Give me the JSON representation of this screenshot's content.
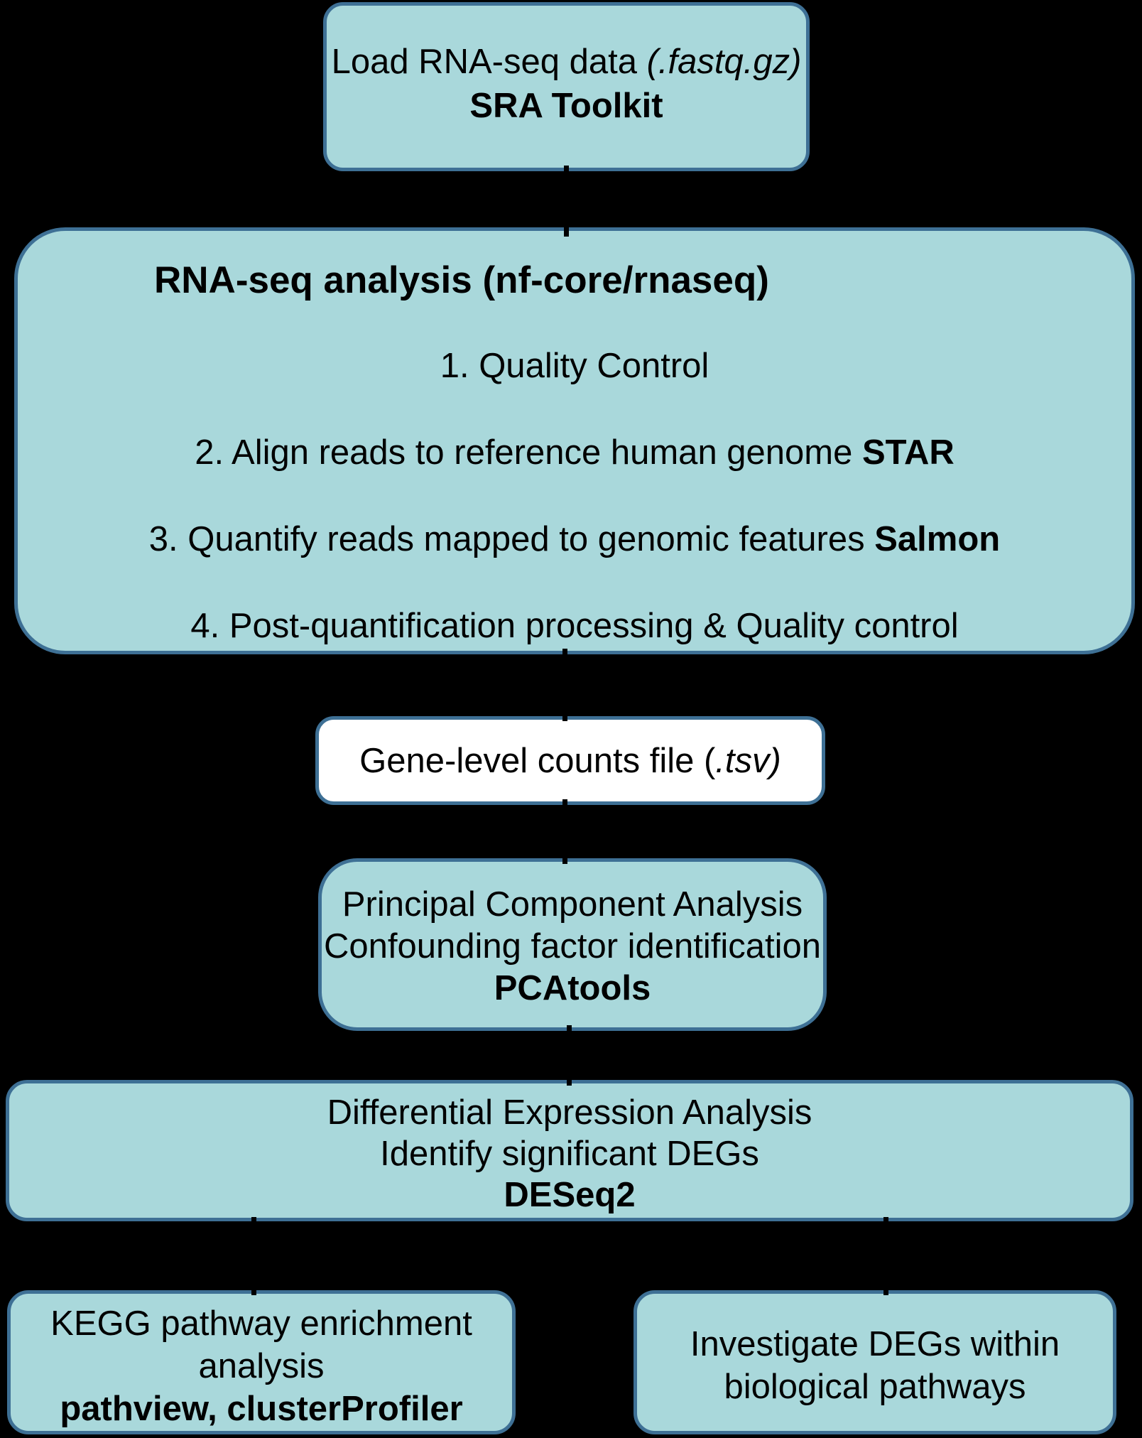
{
  "colors": {
    "background": "#000000",
    "node_fill": "#a9d8db",
    "node_border": "#3e7095",
    "file_node_fill": "#ffffff",
    "text": "#000000"
  },
  "nodes": {
    "load_data": {
      "text": "Load RNA-seq data ",
      "file_format": "(.fastq.gz)",
      "tool": "SRA Toolkit"
    },
    "pipeline": {
      "title": "RNA-seq analysis (nf-core/rnaseq)",
      "steps": [
        {
          "text": "1. Quality Control",
          "tool": ""
        },
        {
          "text": "2. Align reads to reference human genome ",
          "tool": "STAR"
        },
        {
          "text": "3. Quantify reads mapped to genomic features ",
          "tool": "Salmon"
        },
        {
          "text": "4. Post-quantification processing & Quality control",
          "tool": ""
        }
      ]
    },
    "counts_file": {
      "text": "Gene-level counts file (",
      "file_format": ".tsv)"
    },
    "pca": {
      "line1": "Principal Component Analysis",
      "line2": "Confounding factor identification",
      "tool": "PCAtools"
    },
    "dea": {
      "line1": "Differential Expression Analysis",
      "line2": "Identify significant DEGs",
      "tool": "DESeq2"
    },
    "kegg": {
      "line1": "KEGG pathway enrichment",
      "line2": "analysis",
      "tool": "pathview, clusterProfiler"
    },
    "pathways": {
      "line1": "Investigate DEGs within",
      "line2": "biological pathways"
    }
  }
}
